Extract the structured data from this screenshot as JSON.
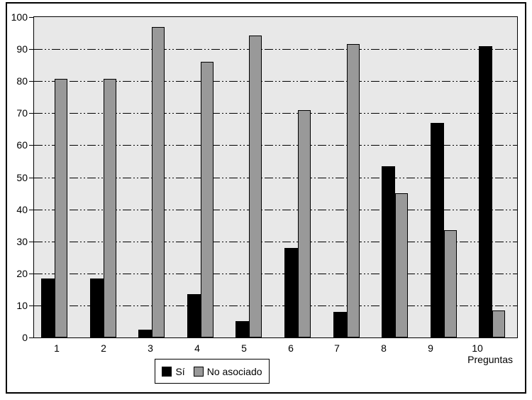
{
  "window": {
    "background": "#ffffff",
    "frame_border_color": "#000000"
  },
  "chart_data": {
    "type": "bar",
    "title": "",
    "xlabel": "Preguntas",
    "ylabel": "",
    "ylim": [
      0,
      100
    ],
    "yticks": [
      0,
      10,
      20,
      30,
      40,
      50,
      60,
      70,
      80,
      90,
      100
    ],
    "grid": "horizontal dash-dot black lines at each 10 units (10-90)",
    "plot_background": "#e8e8e8",
    "gridline_color": "#000000",
    "legend_position": "bottom-center",
    "categories": [
      "1",
      "2",
      "3",
      "4",
      "5",
      "6",
      "7",
      "8",
      "9",
      "10"
    ],
    "series": [
      {
        "name": "Sí",
        "color": "#000000",
        "values": [
          18.5,
          18.5,
          2.5,
          13.5,
          5.2,
          28,
          8,
          53.5,
          67,
          91
        ]
      },
      {
        "name": "No asociado",
        "color": "#999999",
        "values": [
          80.7,
          80.7,
          97,
          86,
          94.3,
          71,
          91.5,
          45,
          33.5,
          8.5
        ]
      }
    ]
  }
}
